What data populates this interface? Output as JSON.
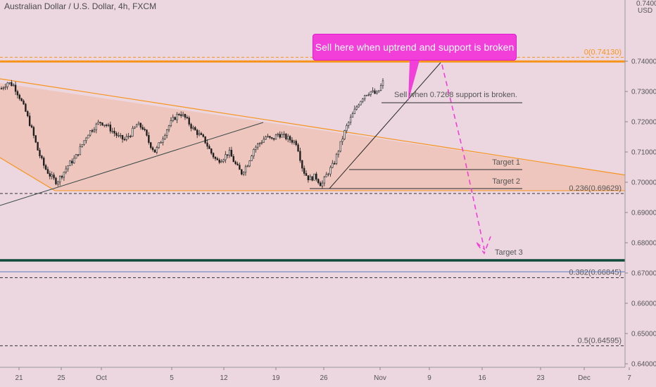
{
  "header": {
    "symbol_title": "Australian Dollar / U.S. Dollar, 4h, FXCM"
  },
  "callout": {
    "text": "Sell here when uptrend and support is broken"
  },
  "annotations": {
    "sell_note": "Sell when 0.7268 support is broken.",
    "target1": "Target 1",
    "target2": "Target 2",
    "target3": "Target 3"
  },
  "colors": {
    "background": "#ecd7e0",
    "triangle_fill": "#f0b8a0",
    "orange_line": "#f7941d",
    "candle": "#1f1f1f",
    "callout": "#f23fd9",
    "dashed_projection": "#f23fd9",
    "dark_green_line": "#0f4a3a",
    "blue_line": "#5b7fbf"
  },
  "chart_data": {
    "type": "candlestick",
    "title": "Australian Dollar / U.S. Dollar, 4h, FXCM",
    "yunit": "USD",
    "ylim": [
      0.6375,
      0.76
    ],
    "y_ticks": [
      "0.74000",
      "0.73000",
      "0.72000",
      "0.71000",
      "0.70000",
      "0.69000",
      "0.68000",
      "0.67000",
      "0.66000",
      "0.65000",
      "0.64000"
    ],
    "y_top_partial": "0.74000",
    "x_ticks": [
      "21",
      "25",
      "Oct",
      "5",
      "12",
      "19",
      "26",
      "Nov",
      "9",
      "16",
      "23",
      "Dec",
      "7"
    ],
    "grid": false,
    "fibonacci_levels": [
      {
        "label": "0(0.74130)",
        "value": 0.7413
      },
      {
        "label": "0.236(0.69629)",
        "value": 0.69629
      },
      {
        "label": "0.382(0.66845)",
        "value": 0.66845
      },
      {
        "label": "0.5(0.64595)",
        "value": 0.64595
      }
    ],
    "horizontal_lines": [
      {
        "value": 0.7399,
        "style": "thick-orange"
      },
      {
        "value": 0.6742,
        "style": "thick-dark-green"
      },
      {
        "value": 0.6704,
        "style": "thin-blue"
      }
    ],
    "close_path": [
      0.731,
      0.733,
      0.732,
      0.728,
      0.723,
      0.717,
      0.71,
      0.705,
      0.702,
      0.7,
      0.703,
      0.706,
      0.708,
      0.712,
      0.716,
      0.718,
      0.72,
      0.719,
      0.717,
      0.715,
      0.714,
      0.716,
      0.719,
      0.718,
      0.713,
      0.71,
      0.714,
      0.718,
      0.721,
      0.723,
      0.721,
      0.718,
      0.716,
      0.714,
      0.71,
      0.707,
      0.708,
      0.71,
      0.706,
      0.703,
      0.706,
      0.711,
      0.713,
      0.715,
      0.714,
      0.716,
      0.715,
      0.714,
      0.713,
      0.704,
      0.701,
      0.702,
      0.699,
      0.703,
      0.706,
      0.712,
      0.718,
      0.722,
      0.726,
      0.729,
      0.73,
      0.729,
      0.733
    ]
  }
}
